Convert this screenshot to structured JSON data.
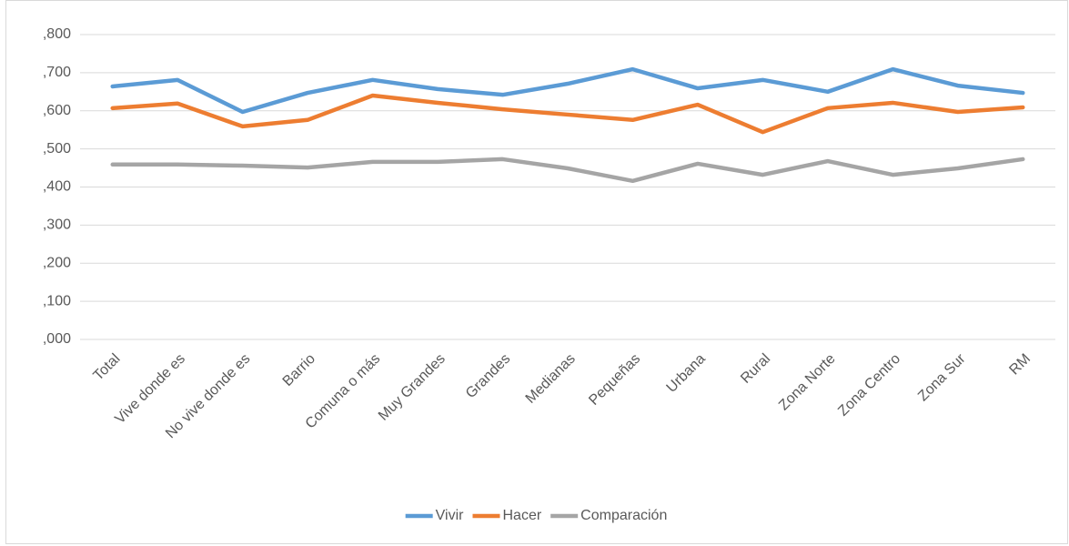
{
  "chart_data": {
    "type": "line",
    "categories": [
      "Total",
      "Vive donde es",
      "No vive donde es",
      "Barrio",
      "Comuna o más",
      "Muy Grandes",
      "Grandes",
      "Medianas",
      "Pequeñas",
      "Urbana",
      "Rural",
      "Zona Norte",
      "Zona Centro",
      "Zona Sur",
      "RM"
    ],
    "series": [
      {
        "name": "Vivir",
        "color": "#5b9bd5",
        "values": [
          0.664,
          0.681,
          0.597,
          0.647,
          0.681,
          0.657,
          0.642,
          0.671,
          0.709,
          0.659,
          0.681,
          0.65,
          0.709,
          0.666,
          0.647
        ]
      },
      {
        "name": "Hacer",
        "color": "#ed7d31",
        "values": [
          0.607,
          0.619,
          0.559,
          0.576,
          0.64,
          0.621,
          0.604,
          0.59,
          0.576,
          0.616,
          0.544,
          0.607,
          0.621,
          0.597,
          0.609
        ]
      },
      {
        "name": "Comparación",
        "color": "#a5a5a5",
        "values": [
          0.459,
          0.459,
          0.456,
          0.451,
          0.466,
          0.466,
          0.473,
          0.449,
          0.416,
          0.461,
          0.432,
          0.468,
          0.432,
          0.449,
          0.473
        ]
      }
    ],
    "ylim": [
      0,
      0.8
    ],
    "yticks": [
      {
        "value": 0,
        "label": ",000"
      },
      {
        "value": 0.1,
        "label": ",100"
      },
      {
        "value": 0.2,
        "label": ",200"
      },
      {
        "value": 0.3,
        "label": ",300"
      },
      {
        "value": 0.4,
        "label": ",400"
      },
      {
        "value": 0.5,
        "label": ",500"
      },
      {
        "value": 0.6,
        "label": ",600"
      },
      {
        "value": 0.7,
        "label": ",700"
      },
      {
        "value": 0.8,
        "label": ",800"
      }
    ],
    "grid": true,
    "legend": "bottom"
  }
}
